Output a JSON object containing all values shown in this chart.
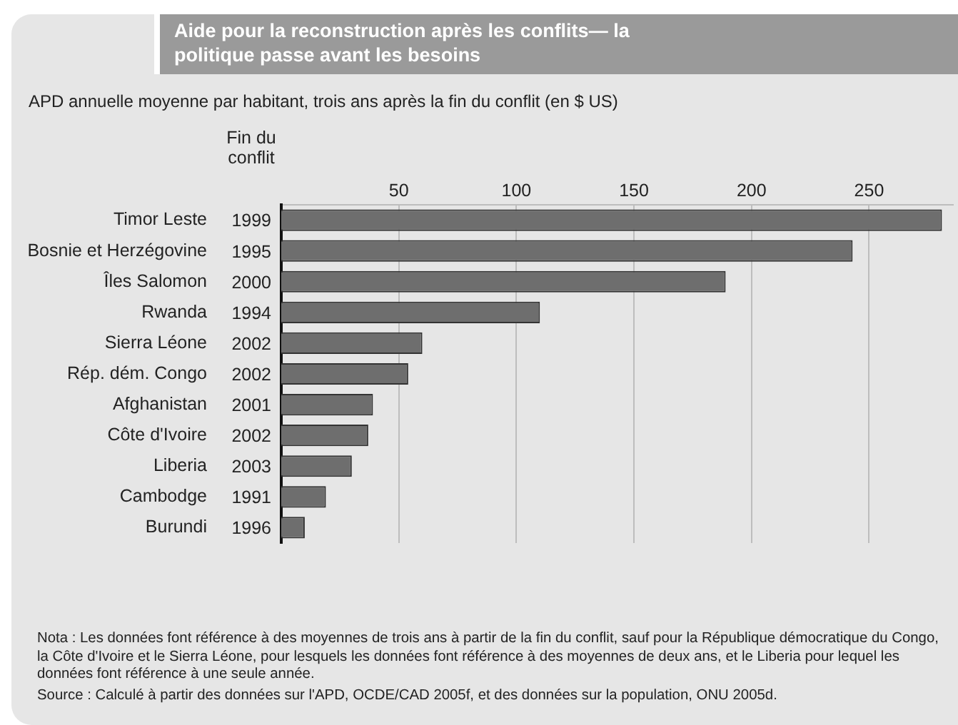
{
  "chart_data": {
    "type": "bar",
    "orientation": "horizontal",
    "title": "Aide pour la reconstruction après les conflits— la politique passe avant les besoins",
    "subtitle": "APD annuelle moyenne par habitant, trois ans après la fin du conflit (en $ US)",
    "categories": [
      "Timor Leste",
      "Bosnie et Herzégovine",
      "Îles Salomon",
      "Rwanda",
      "Sierra Léone",
      "Rép. dém. Congo",
      "Afghanistan",
      "Côte d'Ivoire",
      "Liberia",
      "Cambodge",
      "Burundi"
    ],
    "values": [
      281,
      243,
      189,
      110,
      60,
      54,
      39,
      37,
      30,
      19,
      10
    ],
    "color": "#6e6e6e",
    "xlim": [
      0,
      286
    ],
    "xticks": [
      50,
      100,
      150,
      200,
      250
    ],
    "grid": "x",
    "annotations": [
      "Fin du conflit",
      "1999",
      "1995",
      "2000",
      "1994",
      "2002",
      "2002",
      "2001",
      "2002",
      "2003",
      "1991",
      "1996",
      "Nota : Les données font référence à des moyennes de trois ans à partir de la fin du conflit, sauf pour la République démocratique du Congo, la Côte d'Ivoire et le Sierra Léone, pour lesquels les données font référence à des moyennes de deux ans, et le Liberia pour lequel les données font référence à une seule année.",
      "Source : Calculé à partir des données sur l'APD, OCDE/CAD 2005f, et des données sur la population, ONU 2005d."
    ]
  }
}
